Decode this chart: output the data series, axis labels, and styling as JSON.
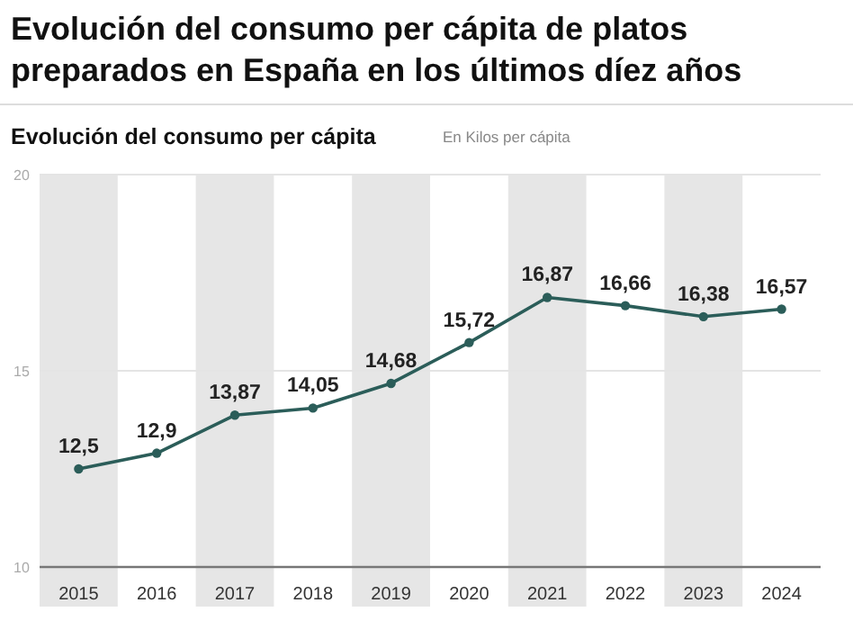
{
  "chart_data": {
    "type": "line",
    "title": "Evolución del consumo per cápita de platos preparados en España en los últimos díez años",
    "subtitle": "Evolución del consumo per cápita",
    "ylabel": "En Kilos per cápita",
    "categories": [
      "2015",
      "2016",
      "2017",
      "2018",
      "2019",
      "2020",
      "2021",
      "2022",
      "2023",
      "2024"
    ],
    "series": [
      {
        "color": "#2b5d59",
        "values": [
          12.5,
          12.9,
          13.87,
          14.05,
          14.68,
          15.72,
          16.87,
          16.66,
          16.38,
          16.57
        ],
        "value_labels": [
          "12,5",
          "12,9",
          "13,87",
          "14,05",
          "14,68",
          "15,72",
          "16,87",
          "16,66",
          "16,38",
          "16,57"
        ]
      }
    ],
    "ylim": [
      10,
      20
    ],
    "yticks": [
      10,
      15,
      20
    ],
    "grid": "y",
    "marker": "circle",
    "line_style": "solid",
    "bands": [
      {
        "axis": "x",
        "from": "2015",
        "to": "2015",
        "color": "#e6e6e6"
      },
      {
        "axis": "x",
        "from": "2017",
        "to": "2017",
        "color": "#e6e6e6"
      },
      {
        "axis": "x",
        "from": "2019",
        "to": "2019",
        "color": "#e6e6e6"
      },
      {
        "axis": "x",
        "from": "2021",
        "to": "2021",
        "color": "#e6e6e6"
      },
      {
        "axis": "x",
        "from": "2023",
        "to": "2023",
        "color": "#e6e6e6"
      }
    ]
  }
}
